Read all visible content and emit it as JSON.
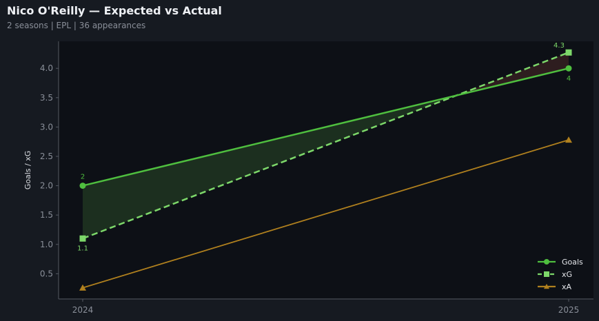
{
  "title": "Nico O'Reilly — Expected vs Actual",
  "subtitle": "2 seasons | EPL | 36 appearances",
  "chart_data": {
    "type": "line",
    "categories": [
      "2024",
      "2025"
    ],
    "ylabel": "Goals / xG",
    "xlabel": "",
    "ylim": [
      0.07,
      4.46
    ],
    "yticks": [
      "0.5",
      "1.0",
      "1.5",
      "2.0",
      "2.5",
      "3.0",
      "3.5",
      "4.0"
    ],
    "grid": false,
    "legend": "bottom-right",
    "series": [
      {
        "name": "Goals",
        "values": [
          2,
          4
        ],
        "labels": [
          "2",
          "4"
        ],
        "color": "#4fbf3f",
        "style": "solid",
        "marker": "circle"
      },
      {
        "name": "xG",
        "values": [
          1.1,
          4.27
        ],
        "labels": [
          "1.1",
          "4.3"
        ],
        "color": "#7dd86a",
        "style": "dashed",
        "marker": "square"
      },
      {
        "name": "xA",
        "values": [
          0.26,
          2.78
        ],
        "color": "#b0801e",
        "style": "solid",
        "marker": "triangle"
      }
    ],
    "fill_colors": {
      "overperform": "#1c2f1f",
      "underperform": "#2e1d1f"
    }
  }
}
